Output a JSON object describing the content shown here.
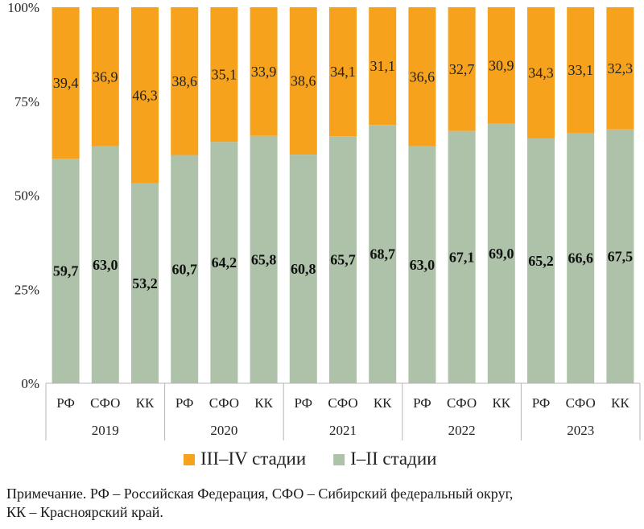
{
  "chart_data": {
    "type": "bar",
    "stacked": true,
    "orientation": "vertical",
    "y_ticks": [
      "0%",
      "25%",
      "50%",
      "75%",
      "100%"
    ],
    "ylim": [
      0,
      100
    ],
    "groups": [
      "2019",
      "2020",
      "2021",
      "2022",
      "2023"
    ],
    "categories": [
      "РФ",
      "СФО",
      "КК",
      "РФ",
      "СФО",
      "КК",
      "РФ",
      "СФО",
      "КК",
      "РФ",
      "СФО",
      "КК",
      "РФ",
      "СФО",
      "КК"
    ],
    "series": [
      {
        "name": "I–II стадии",
        "color": "#adc2a9",
        "values": [
          59.7,
          63.0,
          53.2,
          60.7,
          64.2,
          65.8,
          60.8,
          65.7,
          68.7,
          63.0,
          67.1,
          69.0,
          65.2,
          66.6,
          67.5
        ],
        "labels": [
          "59,7",
          "63,0",
          "53,2",
          "60,7",
          "64,2",
          "65,8",
          "60,8",
          "65,7",
          "68,7",
          "63,0",
          "67,1",
          "69,0",
          "65,2",
          "66,6",
          "67,5"
        ]
      },
      {
        "name": "III–IV стадии",
        "color": "#f6a21c",
        "values": [
          39.4,
          36.9,
          46.3,
          38.6,
          35.1,
          33.9,
          38.6,
          34.1,
          31.1,
          36.6,
          32.7,
          30.9,
          34.3,
          33.1,
          32.3
        ],
        "labels": [
          "39,4",
          "36,9",
          "46,3",
          "38,6",
          "35,1",
          "33,9",
          "38,6",
          "34,1",
          "31,1",
          "36,6",
          "32,7",
          "30,9",
          "34,3",
          "33,1",
          "32,3"
        ]
      }
    ],
    "legend_order": [
      "III–IV стадии",
      "I–II стадии"
    ],
    "legend_position": "bottom",
    "grid": false
  },
  "note": {
    "line1": "Примечание. РФ – Российская Федерация, СФО – Сибирский федеральный округ,",
    "line2": "КК – Красноярский край."
  }
}
